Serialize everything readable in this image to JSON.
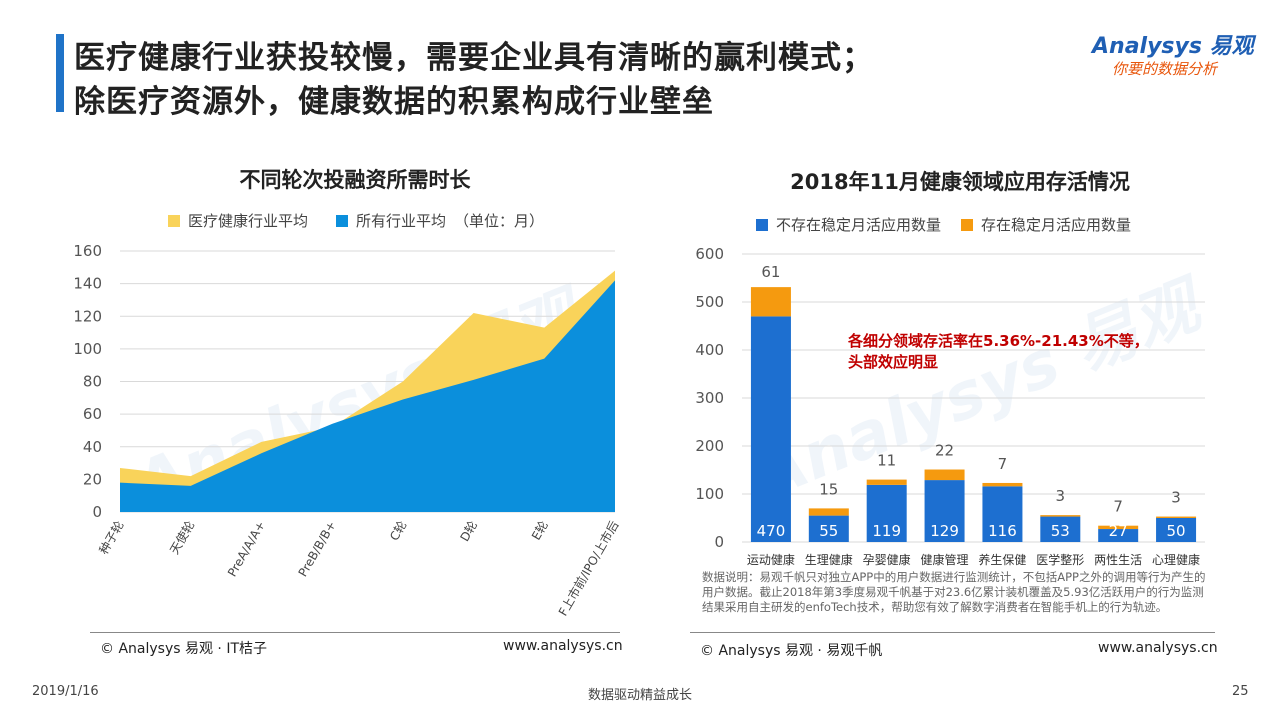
{
  "header": {
    "title_line1": "医疗健康行业获投较慢，需要企业具有清晰的赢利模式；",
    "title_line2": "除医疗资源外，健康数据的积累构成行业壁垒",
    "logo_main": "Analysys 易观",
    "logo_sub": "你要的数据分析"
  },
  "left_panel": {
    "source": "© Analysys 易观 · IT桔子",
    "website": "www.analysys.cn",
    "legend_unit": "（单位：月）"
  },
  "right_panel": {
    "annotation_line1": "各细分领域存活率在5.36%-21.43%不等，",
    "annotation_line2": "头部效应明显",
    "note": "数据说明：易观千帆只对独立APP中的用户数据进行监测统计，不包括APP之外的调用等行为产生的用户数据。截止2018年第3季度易观千帆基于对23.6亿累计装机覆盖及5.93亿活跃用户的行为监测结果采用自主研发的enfoTech技术，帮助您有效了解数字消费者在智能手机上的行为轨迹。",
    "source": "© Analysys 易观 · 易观千帆",
    "website": "www.analysys.cn"
  },
  "footer": {
    "date": "2019/1/16",
    "slogan": "数据驱动精益成长",
    "page": "25"
  },
  "colors": {
    "yellow": "#f9d35a",
    "blue_area": "#0b8fdc",
    "blue_bar": "#1d6fd0",
    "orange": "#f59a0f",
    "accent": "#1f73c8"
  },
  "chart_data": [
    {
      "type": "area",
      "title": "不同轮次投融资所需时长",
      "categories": [
        "种子轮",
        "天使轮",
        "PreA/A/A+",
        "PreB/B/B+",
        "C轮",
        "D轮",
        "E轮",
        "F上市前/IPO/上市后"
      ],
      "series": [
        {
          "name": "医疗健康行业平均",
          "values": [
            27,
            22,
            43,
            52,
            80,
            122,
            113,
            148
          ]
        },
        {
          "name": "所有行业平均",
          "values": [
            18,
            16,
            36,
            54,
            69,
            81,
            94,
            142
          ]
        }
      ],
      "ylim": [
        0,
        160
      ],
      "yticks": [
        0,
        20,
        40,
        60,
        80,
        100,
        120,
        140,
        160
      ],
      "grid": true,
      "legend": "top"
    },
    {
      "type": "bar",
      "stacked": true,
      "title": "2018年11月健康领域应用存活情况",
      "categories": [
        "运动健康",
        "生理健康",
        "孕婴健康",
        "健康管理",
        "养生保健",
        "医学整形",
        "两性生活",
        "心理健康"
      ],
      "series": [
        {
          "name": "不存在稳定月活应用数量",
          "values": [
            470,
            55,
            119,
            129,
            116,
            53,
            27,
            50
          ]
        },
        {
          "name": "存在稳定月活应用数量",
          "values": [
            61,
            15,
            11,
            22,
            7,
            3,
            7,
            3
          ]
        }
      ],
      "ylim": [
        0,
        600
      ],
      "yticks": [
        0,
        100,
        200,
        300,
        400,
        500,
        600
      ],
      "grid": true,
      "legend": "top"
    }
  ]
}
